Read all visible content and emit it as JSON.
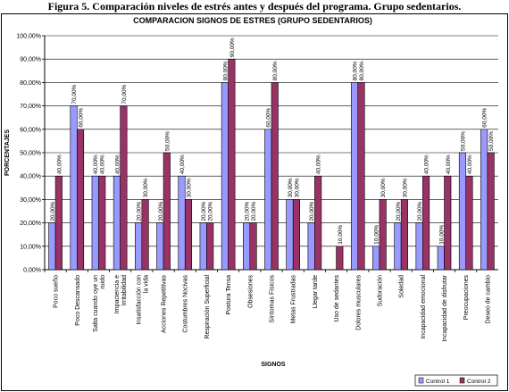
{
  "figure_caption": "Figura 5. Comparación niveles de estrés antes y después del programa. Grupo sedentarios.",
  "chart_data": {
    "type": "bar",
    "title": "COMPARACION SIGNOS DE ESTRES (GRUPO SEDENTARIOS)",
    "xlabel": "SIGNOS",
    "ylabel": "PORCENTAJES",
    "ylim": [
      0,
      100
    ],
    "ytick_step": 10,
    "ytick_labels": [
      "0,00%",
      "10,00%",
      "20,00%",
      "30,00%",
      "40,00%",
      "50,00%",
      "60,00%",
      "70,00%",
      "80,00%",
      "90,00%",
      "100,00%"
    ],
    "grid": true,
    "legend_position": "bottom-right",
    "categories": [
      "Poco sueño",
      "Poco Descansado",
      "Salta cuando oye un ruido",
      "Impaciencia e Irritabilidad",
      "Insatisfacción con la vida",
      "Acciones Repetitivas",
      "Costumbres Nocivas",
      "Respiración Superficial",
      "Postura Tensa",
      "Obsesiones",
      "Síntomas Físicos",
      "Metas Frustradas",
      "Llegar tarde",
      "Uso de sedantes",
      "Dolores musculares",
      "Sudoración",
      "Soledad",
      "Incapacidad emocional",
      "Incapacidad de disfrutar",
      "Preocupaciones",
      "Deseo de cambio"
    ],
    "series": [
      {
        "name": "Control 1",
        "color": "#9999FF",
        "values": [
          20,
          70,
          40,
          40,
          20,
          20,
          40,
          20,
          80,
          20,
          60,
          30,
          20,
          0,
          80,
          10,
          20,
          20,
          10,
          50,
          60
        ],
        "labels": [
          "20,00%",
          "70,00%",
          "40,00%",
          "40,00%",
          "20,00%",
          "20,00%",
          "40,00%",
          "20,00%",
          "80,00%",
          "20,00%",
          "60,00%",
          "30,00%",
          "20,00%",
          "",
          "80,00%",
          "10,00%",
          "20,00%",
          "20,00%",
          "10,00%",
          "50,00%",
          "60,00%"
        ]
      },
      {
        "name": "Control 2",
        "color": "#993366",
        "values": [
          40,
          60,
          40,
          70,
          30,
          50,
          30,
          20,
          90,
          20,
          80,
          30,
          40,
          10,
          80,
          30,
          30,
          40,
          40,
          40,
          50
        ],
        "labels": [
          "40,00%",
          "60,00%",
          "40,00%",
          "70,00%",
          "30,00%",
          "50,00%",
          "30,00%",
          "20,00%",
          "90,00%",
          "20,00%",
          "80,00%",
          "30,00%",
          "40,00%",
          "10,00%",
          "80,00%",
          "30,00%",
          "30,00%",
          "40,00%",
          "40,00%",
          "40,00%",
          "50,00%"
        ]
      }
    ]
  }
}
